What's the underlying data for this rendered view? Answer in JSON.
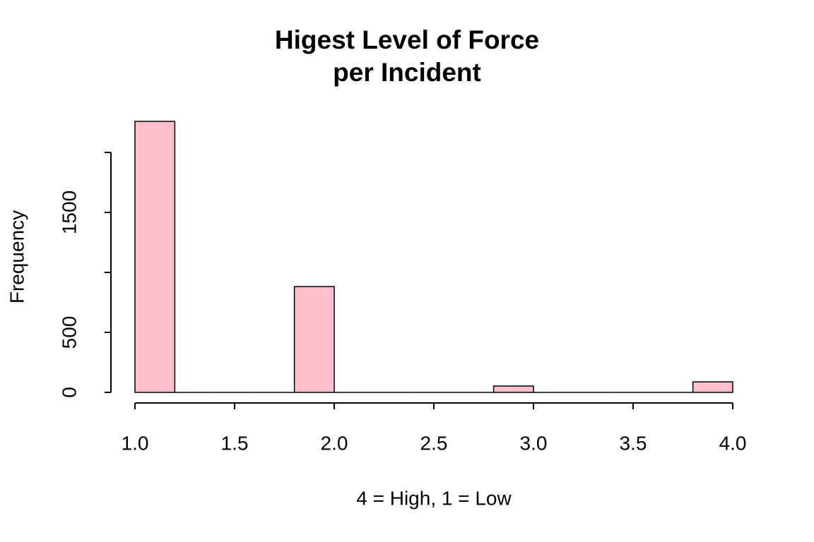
{
  "chart_data": {
    "type": "histogram",
    "title": "Higest Level of Force\nper Incident",
    "xlabel": "4 = High, 1 = Low",
    "ylabel": "Frequency",
    "bins": [
      1.0,
      1.2,
      1.4,
      1.6,
      1.8,
      2.0,
      2.2,
      2.4,
      2.6,
      2.8,
      3.0,
      3.2,
      3.4,
      3.6,
      3.8,
      4.0
    ],
    "values": [
      2259,
      0,
      0,
      0,
      882,
      0,
      0,
      0,
      0,
      53,
      0,
      0,
      0,
      0,
      88
    ],
    "color": "#ffc0cb",
    "xlim": [
      1,
      4
    ],
    "xticks": [
      {
        "value": 1,
        "label": "1.0"
      },
      1.5,
      {
        "value": 2,
        "label": "2.0"
      },
      2.5,
      {
        "value": 3,
        "label": "3.0"
      },
      3.5,
      {
        "value": 4,
        "label": "4.0"
      }
    ],
    "ylim": [
      0,
      2400
    ],
    "yticks": [
      0,
      500,
      {
        "value": 1000,
        "label": null
      },
      1500,
      {
        "value": 2000,
        "label": null
      }
    ]
  }
}
